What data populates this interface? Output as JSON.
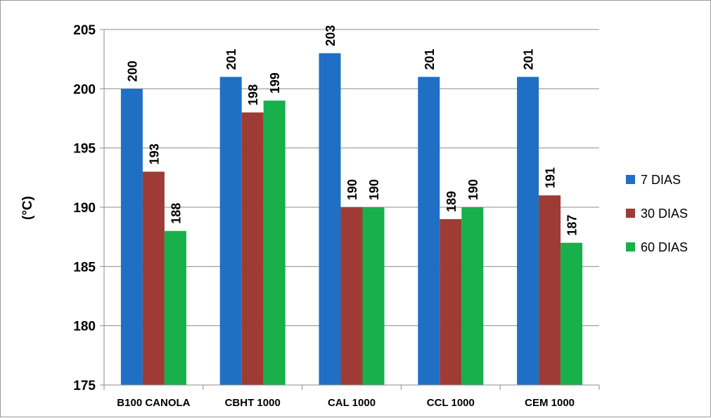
{
  "chart_data": {
    "type": "bar",
    "title": "",
    "xlabel": "",
    "ylabel": "(°C)",
    "ylim": [
      175,
      205
    ],
    "yticks": [
      175,
      180,
      185,
      190,
      195,
      200,
      205
    ],
    "grid": true,
    "legend_position": "right",
    "categories": [
      "B100 CANOLA",
      "CBHT 1000",
      "CAL 1000",
      "CCL 1000",
      "CEM 1000"
    ],
    "series": [
      {
        "name": "7 DIAS",
        "color": "#1f6fc5",
        "values": [
          200,
          201,
          203,
          201,
          201
        ]
      },
      {
        "name": "30 DIAS",
        "color": "#9e3b35",
        "values": [
          193,
          198,
          190,
          189,
          191
        ]
      },
      {
        "name": "60 DIAS",
        "color": "#17b04a",
        "values": [
          188,
          199,
          190,
          190,
          187
        ]
      }
    ]
  }
}
